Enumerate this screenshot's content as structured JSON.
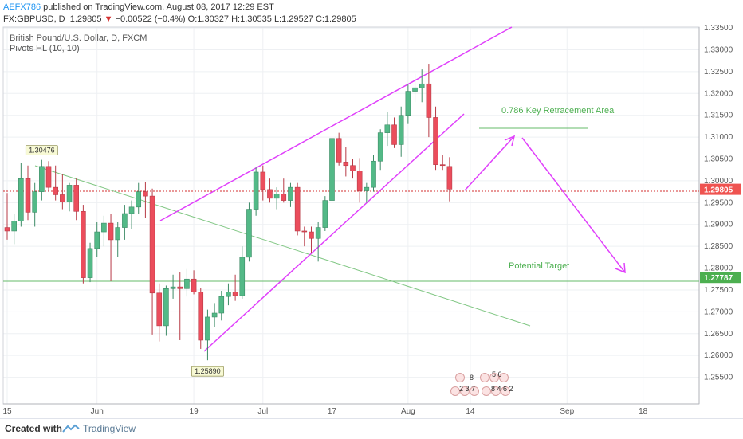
{
  "header": {
    "user": "AEFX786",
    "published": "published on TradingView.com, August 08, 2017 12:29 EST",
    "symbol": "FX:GBPUSD, D",
    "last": "1.29805",
    "change": "−0.00522 (−0.4%)",
    "open": "O:1.30327",
    "high": "H:1.30535",
    "low": "L:1.29527",
    "close": "C:1.29805"
  },
  "footer": {
    "created_with": "Created with",
    "brand": "TradingView"
  },
  "chart_data": {
    "type": "candlestick",
    "title": "British Pound/U.S. Dollar, D, FXCM",
    "subtitle": "Pivots HL (10, 10)",
    "ylim": [
      1.2489,
      1.3352
    ],
    "y_ticks": [
      "1.33500",
      "1.33000",
      "1.32500",
      "1.32000",
      "1.31500",
      "1.31000",
      "1.30500",
      "1.30000",
      "1.29500",
      "1.29000",
      "1.28500",
      "1.28000",
      "1.27500",
      "1.27000",
      "1.26500",
      "1.26000",
      "1.25500"
    ],
    "x_ticks": [
      {
        "label": "15",
        "index": 0
      },
      {
        "label": "Jun",
        "index": 13
      },
      {
        "label": "19",
        "index": 27
      },
      {
        "label": "Jul",
        "index": 37
      },
      {
        "label": "17",
        "index": 47
      },
      {
        "label": "Aug",
        "index": 58
      },
      {
        "label": "14",
        "index": 67
      },
      {
        "label": "Sep",
        "index": 81
      },
      {
        "label": "18",
        "index": 92
      }
    ],
    "candles": [
      [
        1.2893,
        1.2972,
        1.2865,
        1.2885
      ],
      [
        1.2885,
        1.2925,
        1.2855,
        1.2908
      ],
      [
        1.2908,
        1.304,
        1.2895,
        1.3005
      ],
      [
        1.3005,
        1.3035,
        1.291,
        1.2928
      ],
      [
        1.2928,
        1.2995,
        1.2895,
        1.2975
      ],
      [
        1.2975,
        1.3048,
        1.2955,
        1.3033
      ],
      [
        1.3033,
        1.3045,
        1.2975,
        1.2985
      ],
      [
        1.2985,
        1.3035,
        1.2955,
        1.2968
      ],
      [
        1.2968,
        1.3015,
        1.2935,
        1.2952
      ],
      [
        1.2952,
        1.2995,
        1.293,
        1.299
      ],
      [
        1.299,
        1.3005,
        1.291,
        1.293
      ],
      [
        1.293,
        1.2945,
        1.2765,
        1.2778
      ],
      [
        1.2778,
        1.2858,
        1.2768,
        1.2845
      ],
      [
        1.2845,
        1.2905,
        1.2825,
        1.2883
      ],
      [
        1.2883,
        1.292,
        1.285,
        1.2903
      ],
      [
        1.2903,
        1.2925,
        1.277,
        1.2865
      ],
      [
        1.2865,
        1.2905,
        1.2825,
        1.2893
      ],
      [
        1.2893,
        1.2945,
        1.2865,
        1.2925
      ],
      [
        1.2925,
        1.2955,
        1.289,
        1.294
      ],
      [
        1.294,
        1.2995,
        1.2925,
        1.2975
      ],
      [
        1.2975,
        1.2998,
        1.2915,
        1.2965
      ],
      [
        1.2965,
        1.2982,
        1.2648,
        1.2743
      ],
      [
        1.2743,
        1.2765,
        1.2632,
        1.2668
      ],
      [
        1.2668,
        1.276,
        1.2645,
        1.2753
      ],
      [
        1.2753,
        1.2785,
        1.273,
        1.2757
      ],
      [
        1.2757,
        1.279,
        1.2635,
        1.2753
      ],
      [
        1.2753,
        1.2798,
        1.2735,
        1.2775
      ],
      [
        1.2775,
        1.2795,
        1.274,
        1.2745
      ],
      [
        1.2745,
        1.2755,
        1.2615,
        1.2635
      ],
      [
        1.2635,
        1.2705,
        1.2589,
        1.2688
      ],
      [
        1.2688,
        1.272,
        1.2665,
        1.2697
      ],
      [
        1.2697,
        1.2748,
        1.268,
        1.2735
      ],
      [
        1.2735,
        1.2765,
        1.2715,
        1.2745
      ],
      [
        1.2745,
        1.2785,
        1.2725,
        1.2737
      ],
      [
        1.2737,
        1.285,
        1.273,
        1.2825
      ],
      [
        1.2825,
        1.295,
        1.2815,
        1.2935
      ],
      [
        1.2935,
        1.303,
        1.292,
        1.302
      ],
      [
        1.302,
        1.3035,
        1.2955,
        1.298
      ],
      [
        1.298,
        1.3005,
        1.295,
        1.296
      ],
      [
        1.296,
        1.2985,
        1.2935,
        1.297
      ],
      [
        1.297,
        1.3005,
        1.295,
        1.2955
      ],
      [
        1.2955,
        1.2995,
        1.294,
        1.2985
      ],
      [
        1.2985,
        1.2995,
        1.2875,
        1.2885
      ],
      [
        1.2885,
        1.2895,
        1.285,
        1.2883
      ],
      [
        1.2883,
        1.2895,
        1.2835,
        1.2868
      ],
      [
        1.2868,
        1.2905,
        1.2815,
        1.2893
      ],
      [
        1.2893,
        1.2965,
        1.2885,
        1.2955
      ],
      [
        1.2955,
        1.31,
        1.2945,
        1.3097
      ],
      [
        1.3097,
        1.311,
        1.3035,
        1.3043
      ],
      [
        1.3043,
        1.3078,
        1.301,
        1.3035
      ],
      [
        1.3035,
        1.305,
        1.3005,
        1.3023
      ],
      [
        1.3023,
        1.3052,
        1.295,
        1.2977
      ],
      [
        1.2977,
        1.2995,
        1.295,
        1.2985
      ],
      [
        1.2985,
        1.306,
        1.2975,
        1.3045
      ],
      [
        1.3045,
        1.3118,
        1.3025,
        1.311
      ],
      [
        1.311,
        1.3158,
        1.308,
        1.3128
      ],
      [
        1.3128,
        1.3145,
        1.3075,
        1.3083
      ],
      [
        1.3083,
        1.317,
        1.3055,
        1.315
      ],
      [
        1.315,
        1.322,
        1.313,
        1.3205
      ],
      [
        1.3205,
        1.3245,
        1.318,
        1.3213
      ],
      [
        1.3213,
        1.3255,
        1.318,
        1.3222
      ],
      [
        1.3222,
        1.3268,
        1.31,
        1.3145
      ],
      [
        1.3145,
        1.317,
        1.3025,
        1.3037
      ],
      [
        1.3037,
        1.306,
        1.3025,
        1.3035
      ],
      [
        1.3033,
        1.3054,
        1.2953,
        1.2981
      ]
    ],
    "pivot_labels": [
      {
        "text": "1.30476",
        "index": 5,
        "price": 1.3048,
        "position": "above"
      },
      {
        "text": "1.25890",
        "index": 29,
        "price": 1.2589,
        "position": "below"
      }
    ],
    "price_labels": [
      {
        "text": "1.29805",
        "price": 1.29805,
        "color": "#ef5350"
      },
      {
        "text": "1.27787",
        "price": 1.27787,
        "color": "#4caf50"
      }
    ],
    "annotations": [
      {
        "text": "0.786 Key Retracement Area"
      },
      {
        "text": "Potential Target"
      }
    ]
  }
}
